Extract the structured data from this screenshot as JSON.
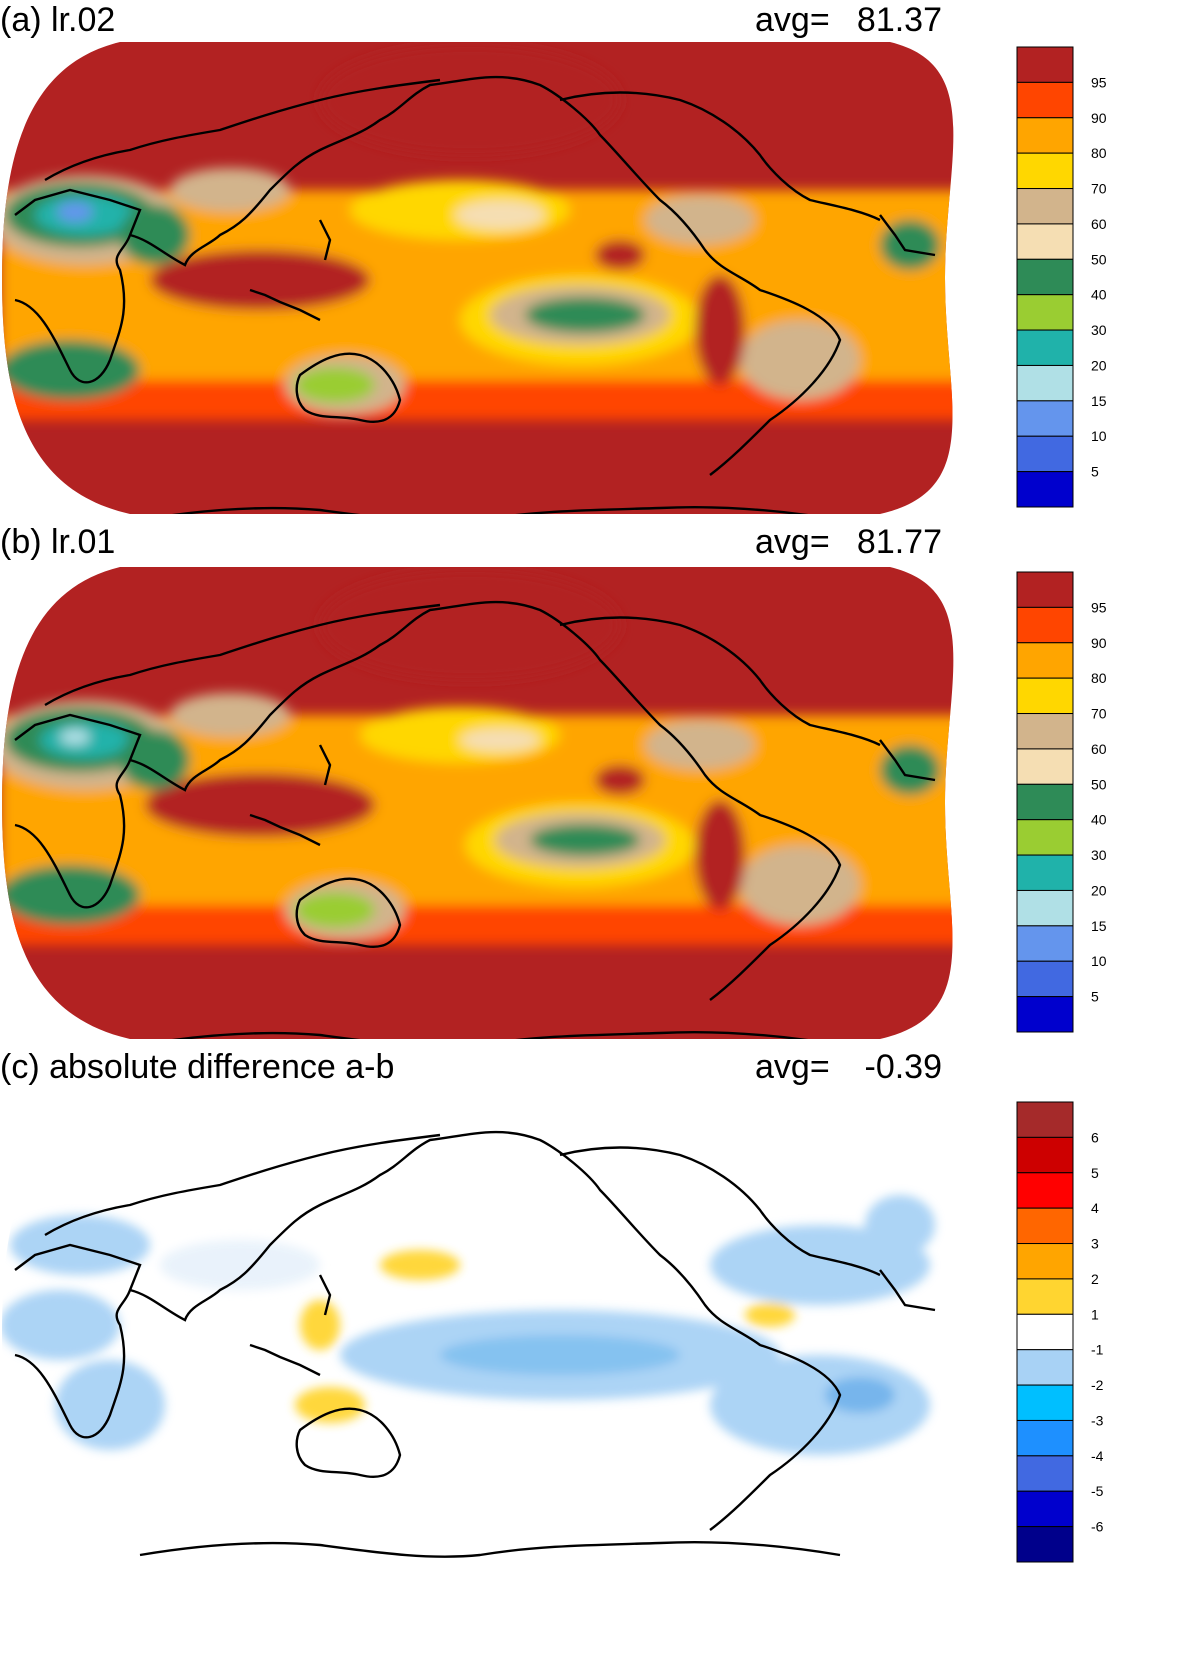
{
  "panels": [
    {
      "title": "(a) lr.02",
      "avg_label": "avg=",
      "avg_value": "81.37",
      "colorbar": {
        "labels": [
          "95",
          "90",
          "80",
          "70",
          "60",
          "50",
          "40",
          "30",
          "20",
          "15",
          "10",
          "5"
        ],
        "colors": [
          "#b22222",
          "#ff4500",
          "#ffa500",
          "#ffd700",
          "#d2b48c",
          "#f5deb3",
          "#2e8b57",
          "#9acd32",
          "#20b2aa",
          "#b0e0e6",
          "#6495ed",
          "#4169e1",
          "#0000cd"
        ]
      }
    },
    {
      "title": "(b) lr.01",
      "avg_label": "avg=",
      "avg_value": "81.77",
      "colorbar": {
        "labels": [
          "95",
          "90",
          "80",
          "70",
          "60",
          "50",
          "40",
          "30",
          "20",
          "15",
          "10",
          "5"
        ],
        "colors": [
          "#b22222",
          "#ff4500",
          "#ffa500",
          "#ffd700",
          "#d2b48c",
          "#f5deb3",
          "#2e8b57",
          "#9acd32",
          "#20b2aa",
          "#b0e0e6",
          "#6495ed",
          "#4169e1",
          "#0000cd"
        ]
      }
    },
    {
      "title": "(c) absolute difference a-b",
      "avg_label": "avg=",
      "avg_value": "-0.39",
      "colorbar": {
        "labels": [
          "6",
          "5",
          "4",
          "3",
          "2",
          "1",
          "-1",
          "-2",
          "-3",
          "-4",
          "-5",
          "-6"
        ],
        "colors": [
          "#a52a2a",
          "#cd0000",
          "#ff0000",
          "#ff6600",
          "#ffa500",
          "#ffd530",
          "#ffffff",
          "#a8d2f5",
          "#00bfff",
          "#1e90ff",
          "#4169e1",
          "#0000cd",
          "#00008b"
        ]
      }
    }
  ]
}
